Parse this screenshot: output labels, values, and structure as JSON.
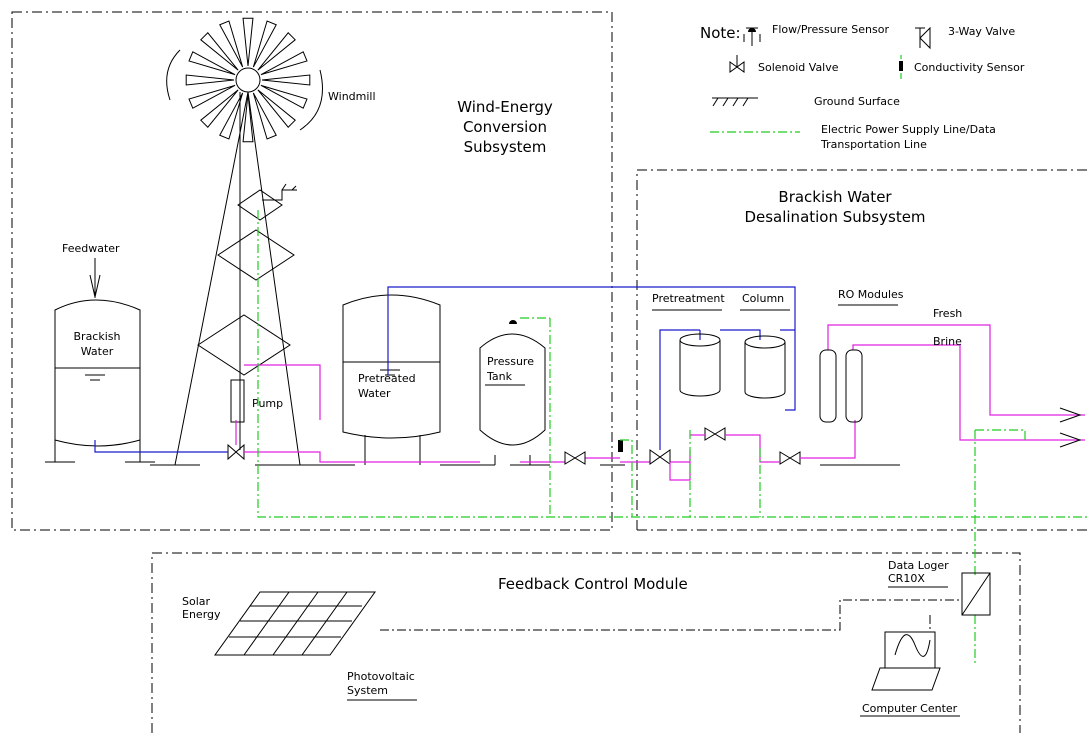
{
  "legend": {
    "note": "Note:",
    "flow_pressure_sensor": "Flow/Pressure Sensor",
    "three_way_valve": "3-Way Valve",
    "solenoid_valve": "Solenoid Valve",
    "conductivity_sensor": "Conductivity Sensor",
    "ground_surface": "Ground Surface",
    "power_line": [
      "Electric Power Supply Line/Data",
      "Transportation Line"
    ]
  },
  "wind_subsystem": {
    "title": [
      "Wind-Energy",
      "Conversion",
      "Subsystem"
    ],
    "windmill": "Windmill",
    "feedwater": "Feedwater",
    "brackish_water": [
      "Brackish",
      "Water"
    ],
    "pump": "Pump",
    "pretreated_water": [
      "Pretreated",
      "Water"
    ],
    "pressure_tank": [
      "Pressure",
      "Tank"
    ]
  },
  "desalination_subsystem": {
    "title": [
      "Brackish Water",
      "Desalination Subsystem"
    ],
    "pretreatment": "Pretreatment",
    "column": "Column",
    "ro_modules": "RO Modules",
    "fresh": "Fresh",
    "brine": "Brine"
  },
  "feedback_module": {
    "title": "Feedback Control Module",
    "data_logger": [
      "Data Loger",
      "CR10X"
    ],
    "solar_energy": [
      "Solar",
      "Energy"
    ],
    "photovoltaic": [
      "Photovoltaic",
      "System"
    ],
    "computer_center": "Computer Center"
  }
}
